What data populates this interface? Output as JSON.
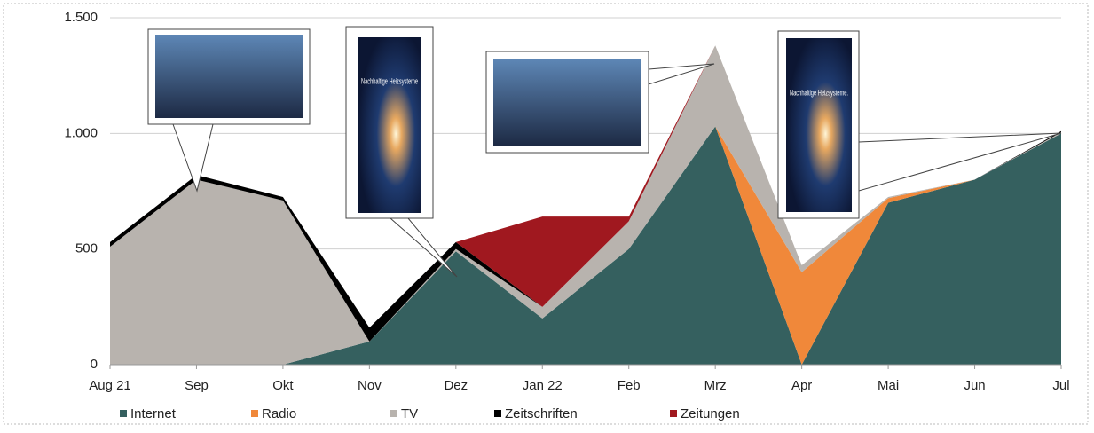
{
  "chart_data": {
    "type": "stacked_area",
    "categories": [
      "Aug 21",
      "Sep",
      "Okt",
      "Nov",
      "Dez",
      "Jan 22",
      "Feb",
      "Mrz",
      "Apr",
      "Mai",
      "Jun",
      "Jul"
    ],
    "series": [
      {
        "name": "Internet",
        "color": "#35605f",
        "values": [
          0,
          0,
          0,
          100,
          490,
          200,
          500,
          1030,
          0,
          700,
          800,
          1000
        ]
      },
      {
        "name": "Radio",
        "color": "#f0883a",
        "values": [
          0,
          0,
          0,
          0,
          0,
          0,
          0,
          0,
          400,
          20,
          0,
          0
        ]
      },
      {
        "name": "TV",
        "color": "#b8b3ae",
        "values": [
          510,
          800,
          710,
          0,
          10,
          50,
          120,
          350,
          30,
          5,
          0,
          5
        ]
      },
      {
        "name": "Zeitschriften",
        "color": "#000000",
        "values": [
          20,
          20,
          15,
          60,
          30,
          0,
          0,
          0,
          0,
          0,
          0,
          5
        ]
      },
      {
        "name": "Zeitungen",
        "color": "#a0181f",
        "values": [
          0,
          0,
          0,
          0,
          0,
          390,
          20,
          0,
          0,
          0,
          0,
          0
        ]
      }
    ],
    "ylim": [
      0,
      1500
    ],
    "yticks": [
      0,
      500,
      {
        "value": 1000,
        "label": "1.000"
      },
      {
        "value": 1500,
        "label": "1.500"
      }
    ],
    "grid": true,
    "legend": "bottom",
    "annotations": [
      "Nachhaltige Heizsysteme",
      "Nachhaltige Heizsysteme."
    ]
  }
}
